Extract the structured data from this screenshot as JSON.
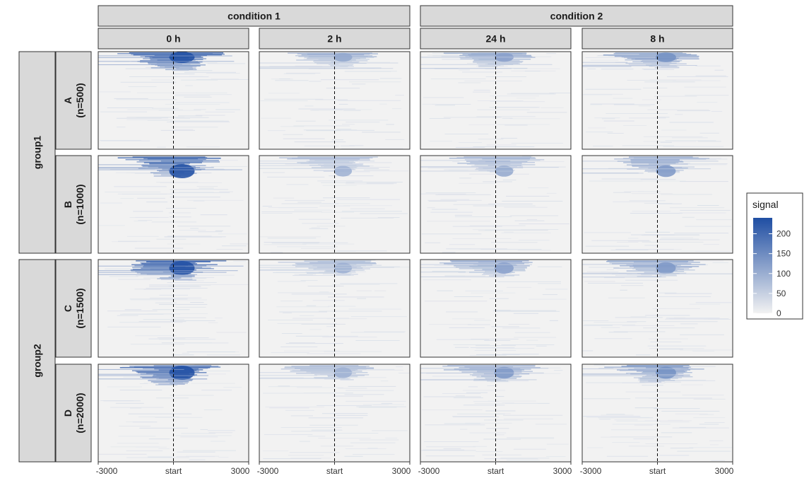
{
  "chart_data": {
    "type": "heatmap",
    "column_groups": [
      {
        "label": "condition 1",
        "times": [
          "0 h",
          "2 h"
        ]
      },
      {
        "label": "condition 2",
        "times": [
          "24 h",
          "8 h"
        ]
      }
    ],
    "row_groups": [
      {
        "label": "group1",
        "clusters": [
          {
            "name": "A",
            "n_label": "(n=500)"
          },
          {
            "name": "B",
            "n_label": "(n=1000)"
          }
        ]
      },
      {
        "label": "group2",
        "clusters": [
          {
            "name": "C",
            "n_label": "(n=1500)"
          },
          {
            "name": "D",
            "n_label": "(n=2000)"
          }
        ]
      }
    ],
    "x_ticks": [
      {
        "value": -3000,
        "label": "-3000"
      },
      {
        "value": 0,
        "label": "start"
      },
      {
        "value": 3000,
        "label": "3000"
      }
    ],
    "xlim": [
      -3000,
      3000
    ],
    "reference_line_x": 0,
    "color_scale": {
      "title": "signal",
      "low_color": "#f2f2f2",
      "high_color": "#1f4ea3",
      "limits": [
        0,
        240
      ],
      "ticks": [
        0,
        50,
        100,
        150,
        200
      ]
    },
    "relative_intensity": [
      [
        1.0,
        0.45,
        0.5,
        0.6
      ],
      [
        1.0,
        0.4,
        0.45,
        0.55
      ],
      [
        1.0,
        0.4,
        0.5,
        0.55
      ],
      [
        1.0,
        0.4,
        0.55,
        0.6
      ]
    ]
  },
  "colors": {
    "strip_background": "#d9d9d9",
    "panel_background": "#f2f2f2",
    "signal_high": "#1f4ea3"
  }
}
